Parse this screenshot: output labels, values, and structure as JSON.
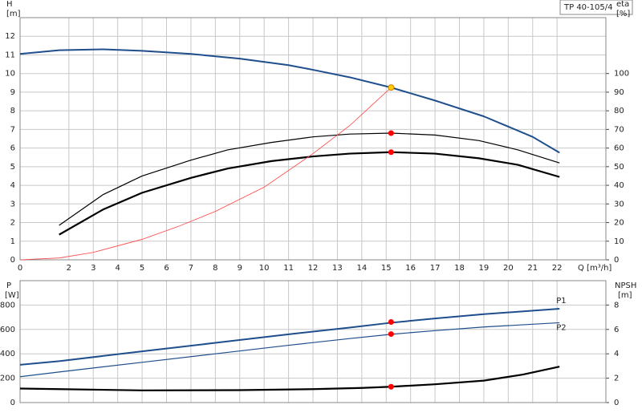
{
  "chart_data": [
    {
      "type": "line",
      "badge": "TP 40-105/4",
      "y_label": "H",
      "y_unit": "[m]",
      "y2_label": "eta",
      "y2_unit": "[%]",
      "x_label": "Q [m³/h]",
      "xlim": [
        0,
        24
      ],
      "xticks": [
        0,
        2,
        3,
        4,
        5,
        6,
        7,
        8,
        9,
        10,
        11,
        12,
        13,
        14,
        15,
        16,
        17,
        18,
        19,
        20,
        21,
        22
      ],
      "ylim": [
        0,
        13
      ],
      "yticks": [
        0,
        1,
        2,
        3,
        4,
        5,
        6,
        7,
        8,
        9,
        10,
        11,
        12
      ],
      "y2lim": [
        0,
        130
      ],
      "y2ticks": [
        0,
        10,
        20,
        30,
        40,
        50,
        60,
        70,
        80,
        90,
        100
      ],
      "grid": true,
      "series": [
        {
          "color": "#1f4e8c",
          "linewidth": 2,
          "x": [
            0,
            1.6,
            3.4,
            5,
            7,
            9,
            11,
            12,
            13.5,
            15.2,
            17,
            19,
            21,
            22.1
          ],
          "values": [
            11.05,
            11.25,
            11.3,
            11.22,
            11.05,
            10.8,
            10.45,
            10.2,
            9.8,
            9.25,
            8.55,
            7.7,
            6.6,
            5.75
          ]
        },
        {
          "color": "#000000",
          "linewidth": 1.2,
          "axis": "y2",
          "x": [
            1.6,
            3.4,
            5,
            7,
            8.5,
            10.3,
            12,
            13.5,
            15.2,
            17,
            18.8,
            20.4,
            22.1
          ],
          "values": [
            18.5,
            35,
            45,
            53.5,
            59,
            63,
            66,
            67.5,
            68,
            67,
            64,
            59,
            52
          ]
        },
        {
          "color": "#000000",
          "linewidth": 2.2,
          "axis": "y2",
          "x": [
            1.6,
            3.4,
            5,
            7,
            8.5,
            10.3,
            12,
            13.5,
            15.2,
            17,
            18.8,
            20.4,
            22.1
          ],
          "values": [
            13.5,
            27,
            36,
            44,
            49,
            53,
            55.5,
            57,
            57.8,
            57,
            54.5,
            51,
            44.5
          ]
        },
        {
          "color": "#ff4040",
          "linewidth": 0.8,
          "x": [
            0,
            1.6,
            3,
            5,
            6.5,
            8,
            10,
            12,
            13.5,
            15.2
          ],
          "values": [
            0,
            0.1,
            0.4,
            1.1,
            1.8,
            2.6,
            3.9,
            5.7,
            7.2,
            9.25
          ]
        },
        {
          "color": "#ffcc00",
          "marker": true,
          "x": [
            15.2
          ],
          "values": [
            9.25
          ]
        },
        {
          "color": "#ff0000",
          "marker": true,
          "axis": "y2",
          "x": [
            15.2,
            15.2
          ],
          "values": [
            68,
            57.8
          ]
        }
      ]
    },
    {
      "type": "line",
      "y_label": "P",
      "y_unit": "[W]",
      "y2_label": "NPSH",
      "y2_unit": "[m]",
      "xlim": [
        0,
        24
      ],
      "ylim": [
        0,
        1000
      ],
      "yticks": [
        0,
        200,
        400,
        600,
        800
      ],
      "y2lim": [
        0,
        10
      ],
      "y2ticks": [
        0,
        2,
        4,
        6,
        8
      ],
      "grid": true,
      "series": [
        {
          "name": "P1",
          "color": "#1f4e8c",
          "linewidth": 2,
          "x": [
            0,
            1.6,
            5,
            8,
            11,
            13.5,
            15.2,
            17,
            19,
            22.1
          ],
          "values": [
            310,
            340,
            420,
            490,
            560,
            615,
            655,
            690,
            725,
            770
          ]
        },
        {
          "name": "P2",
          "color": "#1f4e8c",
          "linewidth": 1.2,
          "x": [
            0,
            1.6,
            5,
            8,
            11,
            13.5,
            15.2,
            17,
            19,
            22.1
          ],
          "values": [
            212,
            251,
            330,
            400,
            470,
            525,
            560,
            590,
            620,
            655
          ]
        },
        {
          "color": "#000000",
          "linewidth": 2.2,
          "axis": "y2",
          "x": [
            0,
            1.6,
            5,
            9,
            12,
            14,
            15.2,
            17,
            19,
            20.6,
            22.1
          ],
          "values": [
            1.15,
            1.1,
            1.0,
            1.02,
            1.1,
            1.2,
            1.3,
            1.5,
            1.8,
            2.3,
            2.95
          ]
        },
        {
          "color": "#ff0000",
          "marker": true,
          "x": [
            15.2,
            15.2
          ],
          "values": [
            661,
            562
          ]
        },
        {
          "color": "#ff0000",
          "marker": true,
          "axis": "y2",
          "x": [
            15.2
          ],
          "values": [
            1.3
          ]
        }
      ]
    }
  ]
}
